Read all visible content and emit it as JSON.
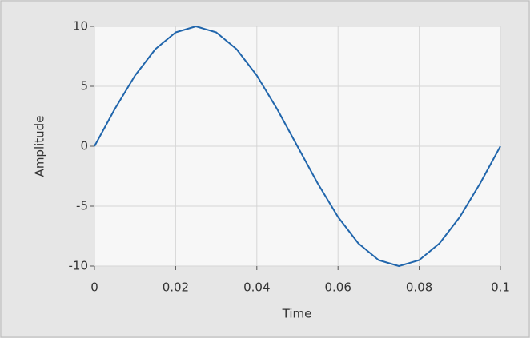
{
  "chart_data": {
    "type": "line",
    "xlabel": "Time",
    "ylabel": "Amplitude",
    "x": [
      0,
      0.005,
      0.01,
      0.015,
      0.02,
      0.025,
      0.03,
      0.035,
      0.04,
      0.045,
      0.05,
      0.055,
      0.06,
      0.065,
      0.07,
      0.075,
      0.08,
      0.085,
      0.09,
      0.095,
      0.1
    ],
    "series": [
      {
        "color": "#2166ac",
        "values": [
          0,
          3.1,
          5.9,
          8.1,
          9.5,
          10,
          9.5,
          8.1,
          5.9,
          3.1,
          0,
          -3.1,
          -5.9,
          -8.1,
          -9.5,
          -10,
          -9.5,
          -8.1,
          -5.9,
          -3.1,
          0
        ]
      }
    ],
    "xlim": [
      0,
      0.1
    ],
    "xticks": [
      0,
      0.02,
      0.04,
      0.06,
      0.08,
      0.1
    ],
    "ylim": [
      -10,
      10
    ],
    "yticks": [
      -10,
      -5,
      0,
      5,
      10
    ],
    "grid": true
  }
}
